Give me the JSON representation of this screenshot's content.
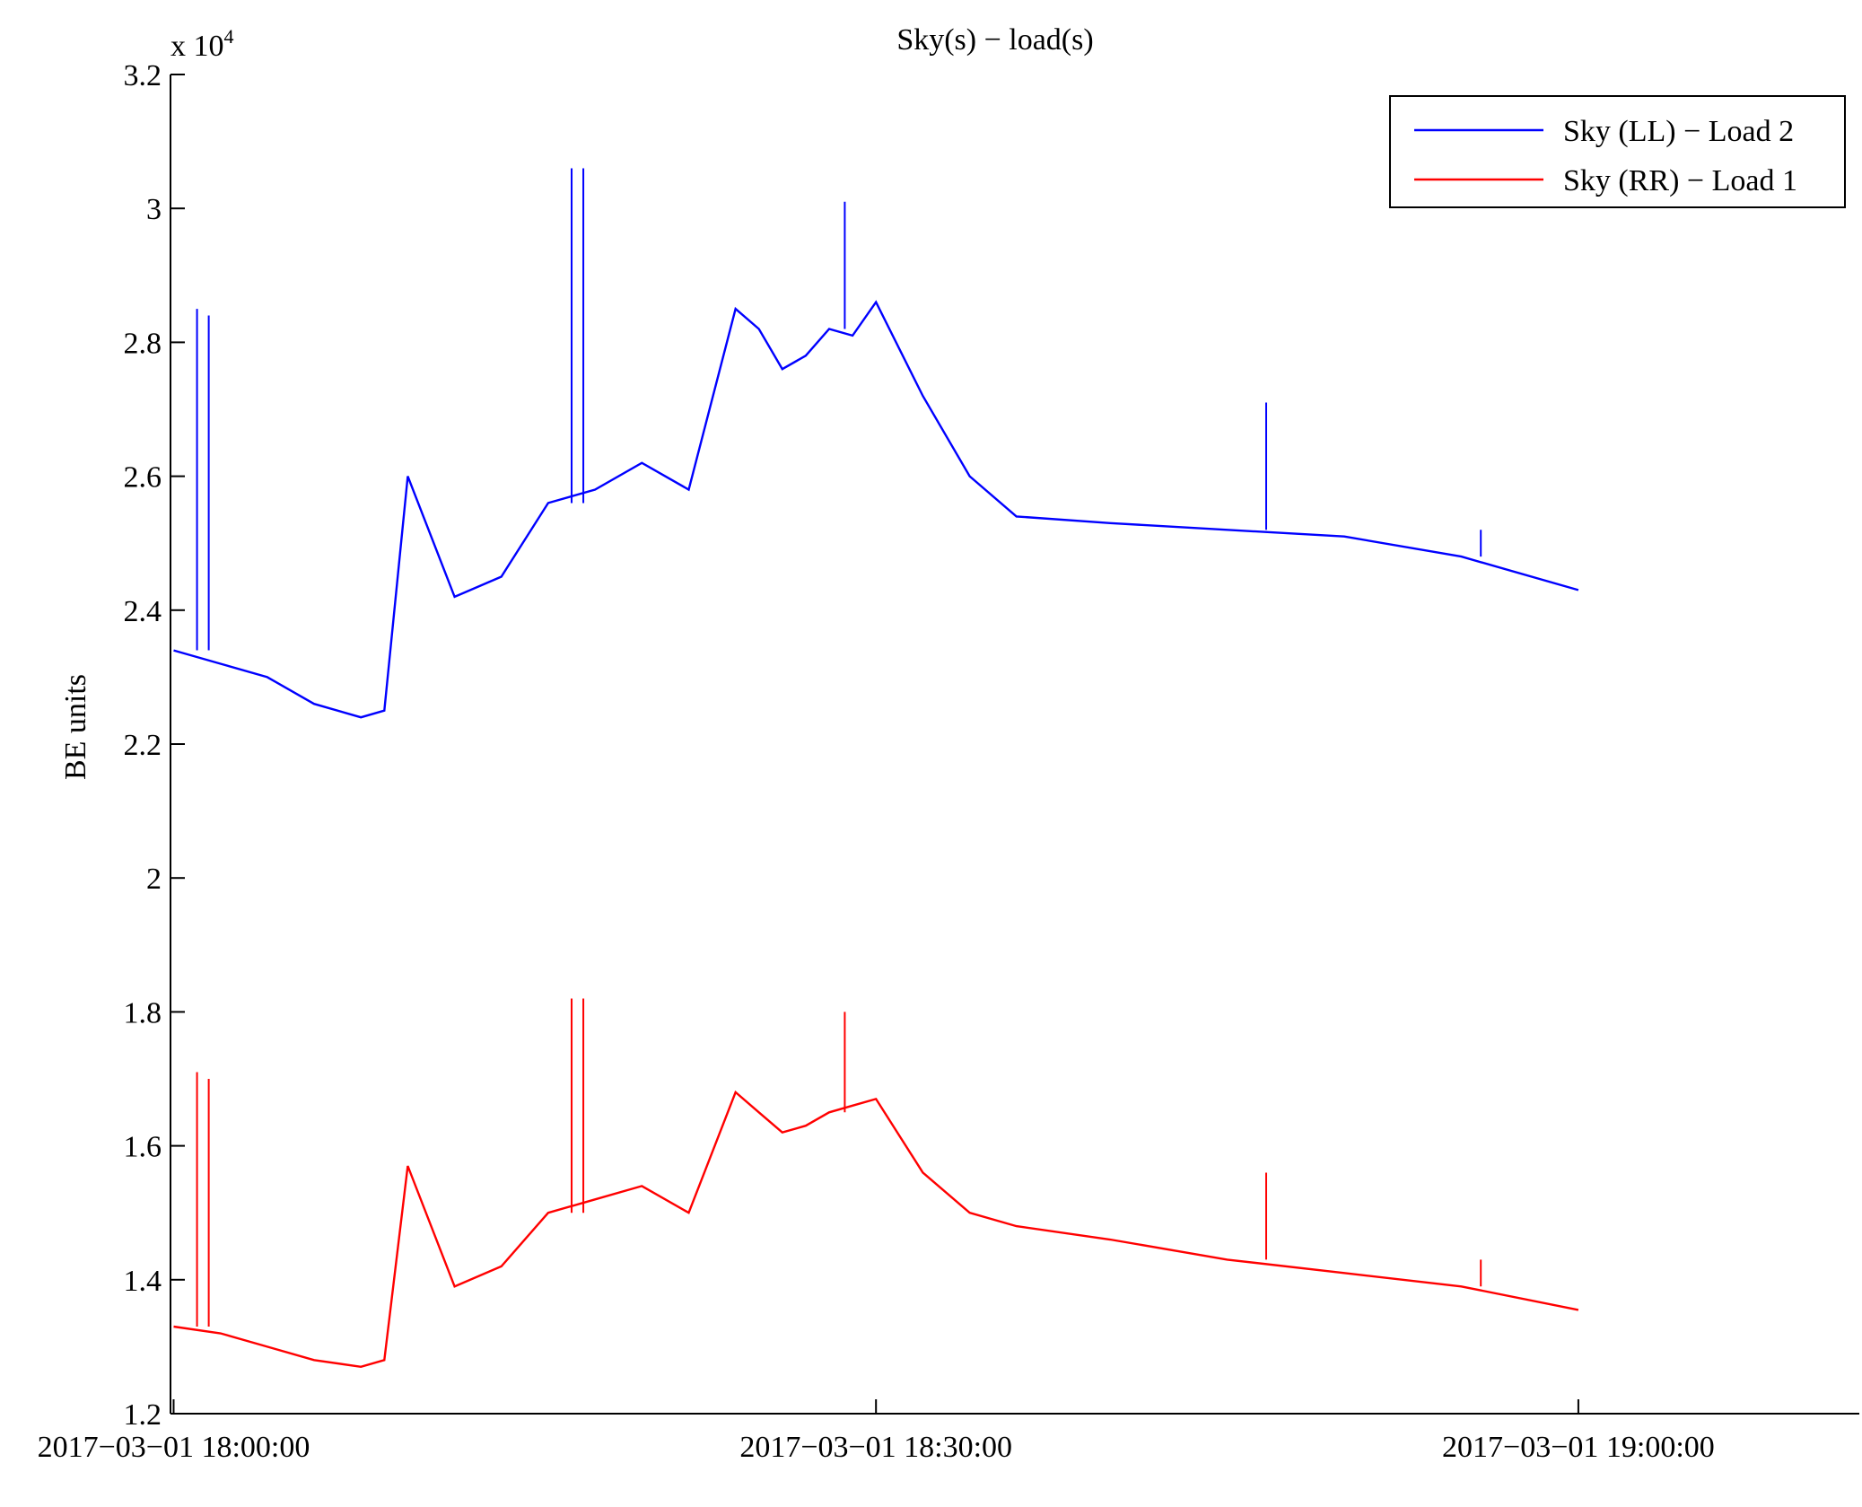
{
  "chart_data": {
    "type": "line",
    "title": "Sky(s) − load(s)",
    "ylabel": "BE units",
    "xlabel": "",
    "y_exponent_label": "x 10",
    "y_exponent_power": "4",
    "xlim": [
      "2017-03-01 17:59:52",
      "2017-03-01 19:12:00"
    ],
    "ylim": [
      12000,
      32000
    ],
    "x_ticks": [
      "2017-03-01 18:00:00",
      "2017-03-01 18:30:00",
      "2017-03-01 19:00:00"
    ],
    "x_tick_labels": [
      "2017−03−01 18:00:00",
      "2017−03−01 18:30:00",
      "2017−03−01 19:00:00"
    ],
    "y_ticks": [
      12000,
      14000,
      16000,
      18000,
      20000,
      22000,
      24000,
      26000,
      28000,
      30000,
      32000
    ],
    "y_tick_labels": [
      "1.2",
      "1.4",
      "1.6",
      "1.8",
      "2",
      "2.2",
      "2.4",
      "2.6",
      "2.8",
      "3",
      "3.2"
    ],
    "grid": false,
    "legend_position": "top-right",
    "series": [
      {
        "name": "Sky (LL) − Load 2",
        "color": "#0000ff",
        "x": [
          "2017-03-01 18:00:00",
          "2017-03-01 18:02:00",
          "2017-03-01 18:04:00",
          "2017-03-01 18:06:00",
          "2017-03-01 18:08:00",
          "2017-03-01 18:09:00",
          "2017-03-01 18:10:00",
          "2017-03-01 18:12:00",
          "2017-03-01 18:14:00",
          "2017-03-01 18:16:00",
          "2017-03-01 18:18:00",
          "2017-03-01 18:20:00",
          "2017-03-01 18:22:00",
          "2017-03-01 18:24:00",
          "2017-03-01 18:25:00",
          "2017-03-01 18:26:00",
          "2017-03-01 18:27:00",
          "2017-03-01 18:28:00",
          "2017-03-01 18:29:00",
          "2017-03-01 18:30:00",
          "2017-03-01 18:32:00",
          "2017-03-01 18:34:00",
          "2017-03-01 18:36:00",
          "2017-03-01 18:40:00",
          "2017-03-01 18:45:00",
          "2017-03-01 18:50:00",
          "2017-03-01 18:55:00",
          "2017-03-01 19:00:00"
        ],
        "values": [
          23400,
          23200,
          23000,
          22600,
          22400,
          22500,
          26000,
          24200,
          24500,
          25600,
          25800,
          26200,
          25800,
          28500,
          28200,
          27600,
          27800,
          28200,
          28100,
          28600,
          27200,
          26000,
          25400,
          25300,
          25200,
          25100,
          24800,
          24300
        ],
        "spikes": [
          {
            "x": "2017-03-01 18:01:00",
            "value": 28500
          },
          {
            "x": "2017-03-01 18:01:30",
            "value": 28400
          },
          {
            "x": "2017-03-01 18:17:00",
            "value": 30600
          },
          {
            "x": "2017-03-01 18:17:30",
            "value": 30600
          },
          {
            "x": "2017-03-01 18:28:40",
            "value": 30100
          },
          {
            "x": "2017-03-01 18:46:40",
            "value": 27100
          },
          {
            "x": "2017-03-01 18:55:50",
            "value": 25200
          }
        ]
      },
      {
        "name": "Sky (RR) − Load 1",
        "color": "#ff0000",
        "x": [
          "2017-03-01 18:00:00",
          "2017-03-01 18:02:00",
          "2017-03-01 18:04:00",
          "2017-03-01 18:06:00",
          "2017-03-01 18:08:00",
          "2017-03-01 18:09:00",
          "2017-03-01 18:10:00",
          "2017-03-01 18:12:00",
          "2017-03-01 18:14:00",
          "2017-03-01 18:16:00",
          "2017-03-01 18:18:00",
          "2017-03-01 18:20:00",
          "2017-03-01 18:22:00",
          "2017-03-01 18:24:00",
          "2017-03-01 18:25:00",
          "2017-03-01 18:26:00",
          "2017-03-01 18:27:00",
          "2017-03-01 18:28:00",
          "2017-03-01 18:29:00",
          "2017-03-01 18:30:00",
          "2017-03-01 18:32:00",
          "2017-03-01 18:34:00",
          "2017-03-01 18:36:00",
          "2017-03-01 18:40:00",
          "2017-03-01 18:45:00",
          "2017-03-01 18:50:00",
          "2017-03-01 18:55:00",
          "2017-03-01 19:00:00"
        ],
        "values": [
          13300,
          13200,
          13000,
          12800,
          12700,
          12800,
          15700,
          13900,
          14200,
          15000,
          15200,
          15400,
          15000,
          16800,
          16500,
          16200,
          16300,
          16500,
          16600,
          16700,
          15600,
          15000,
          14800,
          14600,
          14300,
          14100,
          13900,
          13550
        ],
        "spikes": [
          {
            "x": "2017-03-01 18:01:00",
            "value": 17100
          },
          {
            "x": "2017-03-01 18:01:30",
            "value": 17000
          },
          {
            "x": "2017-03-01 18:17:00",
            "value": 18200
          },
          {
            "x": "2017-03-01 18:17:30",
            "value": 18200
          },
          {
            "x": "2017-03-01 18:28:40",
            "value": 18000
          },
          {
            "x": "2017-03-01 18:46:40",
            "value": 15600
          },
          {
            "x": "2017-03-01 18:55:50",
            "value": 14300
          }
        ]
      }
    ]
  }
}
